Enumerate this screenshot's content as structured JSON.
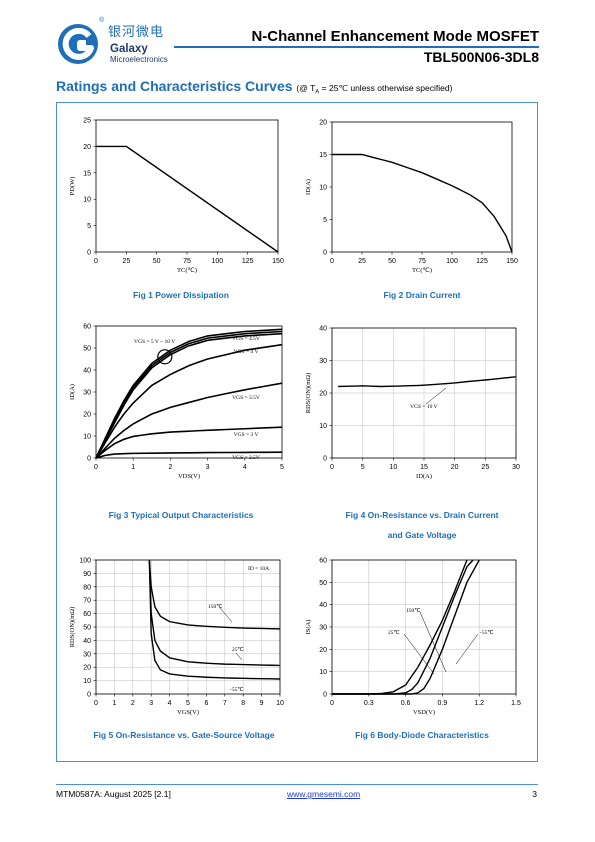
{
  "header": {
    "brand_cn": "银河微电",
    "brand_en": "Galaxy",
    "brand_sub": "Microelectronics",
    "registered": "®",
    "doc_title": "N-Channel Enhancement Mode MOSFET",
    "part_number": "TBL500N06-3DL8",
    "accent": "#1f6fb8"
  },
  "section": {
    "title": "Ratings and Characteristics Curves",
    "condition_prefix": "(@ T",
    "condition_sub": "A",
    "condition_suffix": " = 25℃ unless otherwise specified)"
  },
  "figures": {
    "fig1": {
      "caption": "Fig 1    Power Dissipation"
    },
    "fig2": {
      "caption": "Fig 2    Drain Current"
    },
    "fig3": {
      "caption": "Fig 3    Typical Output Characteristics"
    },
    "fig4": {
      "caption_line1": "Fig 4    On-Resistance vs. Drain Current",
      "caption_line2": "and Gate Voltage"
    },
    "fig5": {
      "caption": "Fig 5    On-Resistance vs. Gate-Source Voltage"
    },
    "fig6": {
      "caption": "Fig 6    Body-Diode Characteristics"
    }
  },
  "chart_data": [
    {
      "id": "fig1",
      "type": "line",
      "xlabel": "TC(℃)",
      "ylabel": "PD(W)",
      "xlim": [
        0,
        150
      ],
      "ylim": [
        0,
        25
      ],
      "xticks": [
        0,
        25,
        50,
        75,
        100,
        125,
        150
      ],
      "yticks": [
        0,
        5,
        10,
        15,
        20,
        25
      ],
      "grid": false,
      "series": [
        {
          "x": [
            0,
            25,
            150
          ],
          "y": [
            20,
            20,
            0
          ]
        }
      ]
    },
    {
      "id": "fig2",
      "type": "line",
      "xlabel": "TC(℃)",
      "ylabel": "ID(A)",
      "xlim": [
        0,
        150
      ],
      "ylim": [
        0,
        20
      ],
      "xticks": [
        0,
        25,
        50,
        75,
        100,
        125,
        150
      ],
      "yticks": [
        0,
        5,
        10,
        15,
        20
      ],
      "grid": false,
      "series": [
        {
          "x": [
            0,
            25,
            50,
            75,
            100,
            115,
            125,
            135,
            145,
            150
          ],
          "y": [
            15,
            15,
            13.8,
            12.2,
            10.2,
            8.8,
            7.6,
            5.5,
            2.5,
            0
          ]
        }
      ]
    },
    {
      "id": "fig3",
      "type": "line",
      "xlabel": "VDS(V)",
      "ylabel": "ID(A)",
      "xlim": [
        0,
        5
      ],
      "ylim": [
        0,
        60
      ],
      "xticks": [
        0,
        1,
        2,
        3,
        4,
        5
      ],
      "yticks": [
        0,
        10,
        20,
        30,
        40,
        50,
        60
      ],
      "grid": false,
      "annotations": [
        "VGS = 5 V ~ 10 V",
        "VGS = 4.5V",
        "VGS = 4 V",
        "VGS = 3.5V",
        "VGS = 3 V",
        "VGS = 2.5V"
      ],
      "series": [
        {
          "name": "VGS = 10 V",
          "x": [
            0,
            0.25,
            0.5,
            0.75,
            1,
            1.5,
            2,
            2.5,
            3,
            4,
            5
          ],
          "y": [
            0,
            9,
            18,
            26,
            33,
            43,
            49,
            53,
            55.5,
            57.5,
            58.5
          ]
        },
        {
          "name": "VGS = 5 V",
          "x": [
            0,
            0.25,
            0.5,
            0.75,
            1,
            1.5,
            2,
            2.5,
            3,
            4,
            5
          ],
          "y": [
            0,
            8.5,
            17,
            25,
            32,
            42,
            48,
            52,
            54.5,
            56.5,
            57.5
          ]
        },
        {
          "name": "VGS = 4.5V",
          "x": [
            0,
            0.25,
            0.5,
            0.75,
            1,
            1.5,
            2,
            2.5,
            3,
            4,
            5
          ],
          "y": [
            0,
            8,
            16,
            24,
            31,
            41,
            47,
            51,
            53.5,
            55.5,
            56.5
          ]
        },
        {
          "name": "VGS = 4 V",
          "x": [
            0,
            0.25,
            0.5,
            0.75,
            1,
            1.5,
            2,
            2.5,
            3,
            4,
            5
          ],
          "y": [
            0,
            7,
            14,
            20,
            25,
            33,
            38,
            42,
            45,
            49,
            51.5
          ]
        },
        {
          "name": "VGS = 3.5V",
          "x": [
            0,
            0.25,
            0.5,
            0.75,
            1,
            1.5,
            2,
            3,
            4,
            5
          ],
          "y": [
            0,
            4.5,
            9,
            12.5,
            15.5,
            20,
            23,
            27.5,
            31,
            34
          ]
        },
        {
          "name": "VGS = 3 V",
          "x": [
            0,
            0.25,
            0.5,
            0.75,
            1,
            1.5,
            2,
            3,
            4,
            5
          ],
          "y": [
            0,
            3.5,
            6.5,
            8.5,
            9.8,
            11,
            11.8,
            12.6,
            13.3,
            14
          ]
        },
        {
          "name": "VGS = 2.5V",
          "x": [
            0,
            0.25,
            0.5,
            1,
            2,
            3,
            4,
            5
          ],
          "y": [
            0,
            1.2,
            1.8,
            2.1,
            2.3,
            2.45,
            2.55,
            2.65
          ]
        }
      ]
    },
    {
      "id": "fig4",
      "type": "line",
      "xlabel": "ID(A)",
      "ylabel": "RDS(ON)(mΩ)",
      "xlim": [
        0,
        30
      ],
      "ylim": [
        0,
        40
      ],
      "xticks": [
        0,
        5,
        10,
        15,
        20,
        25,
        30
      ],
      "yticks": [
        0,
        10,
        20,
        30,
        40
      ],
      "grid": true,
      "annotations": [
        "VGS = 10 V"
      ],
      "series": [
        {
          "name": "VGS = 10 V",
          "x": [
            1,
            3,
            5,
            8,
            10,
            12,
            15,
            18,
            20,
            22,
            25,
            28,
            30
          ],
          "y": [
            22,
            22.1,
            22.2,
            22,
            22.1,
            22.2,
            22.4,
            22.8,
            23.1,
            23.5,
            24,
            24.6,
            25
          ]
        }
      ]
    },
    {
      "id": "fig5",
      "type": "line",
      "xlabel": "VGS(V)",
      "ylabel": "RDS(ON)(mΩ)",
      "xlim": [
        0,
        10
      ],
      "ylim": [
        0,
        100
      ],
      "xticks": [
        0,
        1,
        2,
        3,
        4,
        5,
        6,
        7,
        8,
        9,
        10
      ],
      "yticks": [
        0,
        10,
        20,
        30,
        40,
        50,
        60,
        70,
        80,
        90,
        100
      ],
      "grid": true,
      "annotations": [
        "ID = 10A",
        "150℃",
        "25℃",
        "-55℃"
      ],
      "series": [
        {
          "name": "150℃",
          "x": [
            2.9,
            3.0,
            3.2,
            3.5,
            4,
            5,
            6,
            7,
            8,
            9,
            10
          ],
          "y": [
            100,
            80,
            65,
            58,
            54,
            51.5,
            50.5,
            49.8,
            49.2,
            48.9,
            48.6
          ]
        },
        {
          "name": "25℃",
          "x": [
            2.9,
            3.0,
            3.2,
            3.5,
            4,
            5,
            6,
            7,
            8,
            9,
            10
          ],
          "y": [
            100,
            60,
            40,
            32,
            27,
            24,
            23,
            22.3,
            22,
            21.6,
            21.3
          ]
        },
        {
          "name": "-55℃",
          "x": [
            2.9,
            3.0,
            3.2,
            3.5,
            4,
            5,
            6,
            7,
            8,
            9,
            10
          ],
          "y": [
            100,
            45,
            25,
            18,
            15,
            13.3,
            12.5,
            12,
            11.7,
            11.4,
            11.2
          ]
        }
      ]
    },
    {
      "id": "fig6",
      "type": "line",
      "xlabel": "VSD(V)",
      "ylabel": "IS(A)",
      "xlim": [
        0,
        1.5
      ],
      "ylim": [
        0,
        60
      ],
      "xticks": [
        0,
        0.3,
        0.6,
        0.9,
        1.2,
        1.5
      ],
      "yticks": [
        0,
        10,
        20,
        30,
        40,
        50,
        60
      ],
      "grid": true,
      "annotations": [
        "150℃",
        "25℃",
        "-55℃"
      ],
      "series": [
        {
          "name": "150℃",
          "x": [
            0,
            0.3,
            0.4,
            0.5,
            0.6,
            0.7,
            0.8,
            0.9,
            1.0,
            1.1
          ],
          "y": [
            0,
            0,
            0.2,
            1,
            4,
            12,
            22,
            33,
            46,
            60
          ]
        },
        {
          "name": "25℃",
          "x": [
            0,
            0.5,
            0.6,
            0.65,
            0.7,
            0.8,
            0.9,
            1.0,
            1.1,
            1.15
          ],
          "y": [
            0,
            0,
            0.5,
            2,
            5,
            16,
            30,
            44,
            57,
            60
          ]
        },
        {
          "name": "-55℃",
          "x": [
            0,
            0.65,
            0.7,
            0.75,
            0.8,
            0.9,
            1.0,
            1.1,
            1.2
          ],
          "y": [
            0,
            0,
            0.5,
            2.5,
            7,
            20,
            35,
            50,
            60
          ]
        }
      ]
    }
  ],
  "footer": {
    "doc_code": "MTM0587A: August 2025 [2.1]",
    "website": "www.gmesemi.com",
    "page": "3"
  }
}
